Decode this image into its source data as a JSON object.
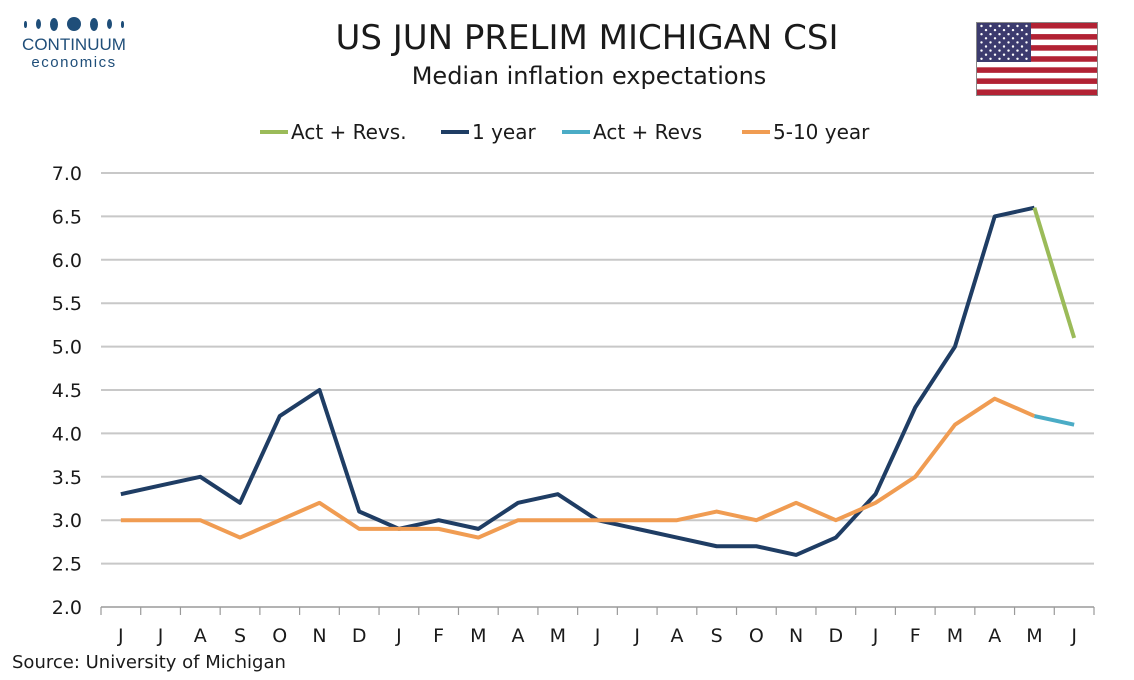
{
  "header": {
    "logo_name": "CONTINUUM",
    "logo_sub": "economics",
    "title": "US JUN PRELIM MICHIGAN CSI",
    "subtitle": "Median inflation expectations"
  },
  "flag": {
    "icon": "us-flag-icon",
    "red": "#b22234",
    "blue": "#3c3b6e"
  },
  "source": "Source: University of Michigan",
  "chart_data": {
    "type": "line",
    "categories": [
      "J",
      "J",
      "A",
      "S",
      "O",
      "N",
      "D",
      "J",
      "F",
      "M",
      "A",
      "M",
      "J",
      "J",
      "A",
      "S",
      "O",
      "N",
      "D",
      "J",
      "F",
      "M",
      "A",
      "M",
      "J"
    ],
    "ylim": [
      2.0,
      7.0
    ],
    "yticks": [
      "2.0",
      "2.5",
      "3.0",
      "3.5",
      "4.0",
      "4.5",
      "5.0",
      "5.5",
      "6.0",
      "6.5",
      "7.0"
    ],
    "grid": true,
    "legend_position": "top",
    "series": [
      {
        "name": "Act + Revs.",
        "color": "#9bbb59",
        "values": [
          null,
          null,
          null,
          null,
          null,
          null,
          null,
          null,
          null,
          null,
          null,
          null,
          null,
          null,
          null,
          null,
          null,
          null,
          null,
          null,
          null,
          null,
          null,
          6.6,
          5.1
        ]
      },
      {
        "name": "1 year",
        "color": "#1f3d64",
        "values": [
          3.3,
          3.4,
          3.5,
          3.2,
          4.2,
          4.5,
          3.1,
          2.9,
          3.0,
          2.9,
          3.2,
          3.3,
          3.0,
          2.9,
          2.8,
          2.7,
          2.7,
          2.6,
          2.8,
          3.3,
          4.3,
          5.0,
          6.5,
          6.6,
          null
        ]
      },
      {
        "name": "Act + Revs",
        "color": "#4bacc6",
        "values": [
          null,
          null,
          null,
          null,
          null,
          null,
          null,
          null,
          null,
          null,
          null,
          null,
          null,
          null,
          null,
          null,
          null,
          null,
          null,
          null,
          null,
          null,
          null,
          4.2,
          4.1
        ]
      },
      {
        "name": "5-10 year",
        "color": "#f09c52",
        "values": [
          3.0,
          3.0,
          3.0,
          2.8,
          3.0,
          3.2,
          2.9,
          2.9,
          2.9,
          2.8,
          3.0,
          3.0,
          3.0,
          3.0,
          3.0,
          3.1,
          3.0,
          3.2,
          3.0,
          3.2,
          3.5,
          4.1,
          4.4,
          4.2,
          null
        ]
      }
    ]
  }
}
